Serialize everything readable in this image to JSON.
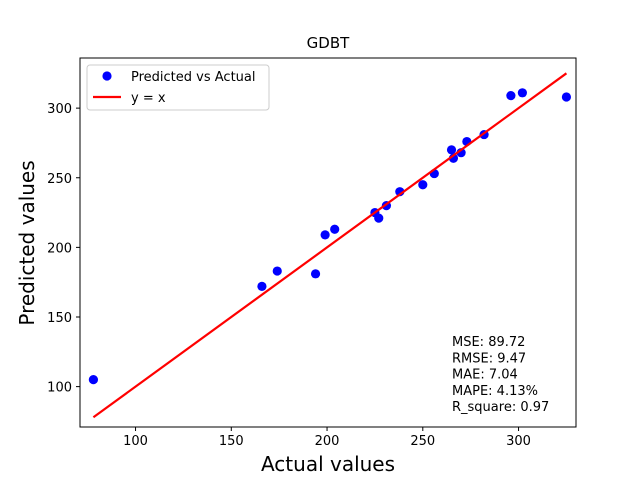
{
  "chart_data": {
    "type": "scatter",
    "title": "GDBT",
    "xlabel": "Actual values",
    "ylabel": "Predicted values",
    "xlim": [
      71,
      330
    ],
    "ylim": [
      71,
      336
    ],
    "xticks": [
      100,
      150,
      200,
      250,
      300
    ],
    "yticks": [
      100,
      150,
      200,
      250,
      300
    ],
    "grid": false,
    "legend_position": "top-left",
    "series": [
      {
        "name": "Predicted vs Actual",
        "type": "scatter",
        "color": "#0000ff",
        "points": [
          [
            78,
            105
          ],
          [
            166,
            172
          ],
          [
            174,
            183
          ],
          [
            194,
            181
          ],
          [
            199,
            209
          ],
          [
            204,
            213
          ],
          [
            225,
            225
          ],
          [
            227,
            221
          ],
          [
            231,
            230
          ],
          [
            238,
            240
          ],
          [
            250,
            245
          ],
          [
            256,
            253
          ],
          [
            265,
            270
          ],
          [
            266,
            264
          ],
          [
            270,
            268
          ],
          [
            273,
            276
          ],
          [
            282,
            281
          ],
          [
            296,
            309
          ],
          [
            302,
            311
          ],
          [
            325,
            308
          ]
        ]
      },
      {
        "name": "y = x",
        "type": "line",
        "color": "#ff0000",
        "points": [
          [
            78,
            78
          ],
          [
            325,
            325
          ]
        ]
      }
    ],
    "annotations": [
      "MSE: 89.72",
      "RMSE: 9.47",
      "MAE: 7.04",
      "MAPE: 4.13%",
      "R_square: 0.97"
    ]
  }
}
